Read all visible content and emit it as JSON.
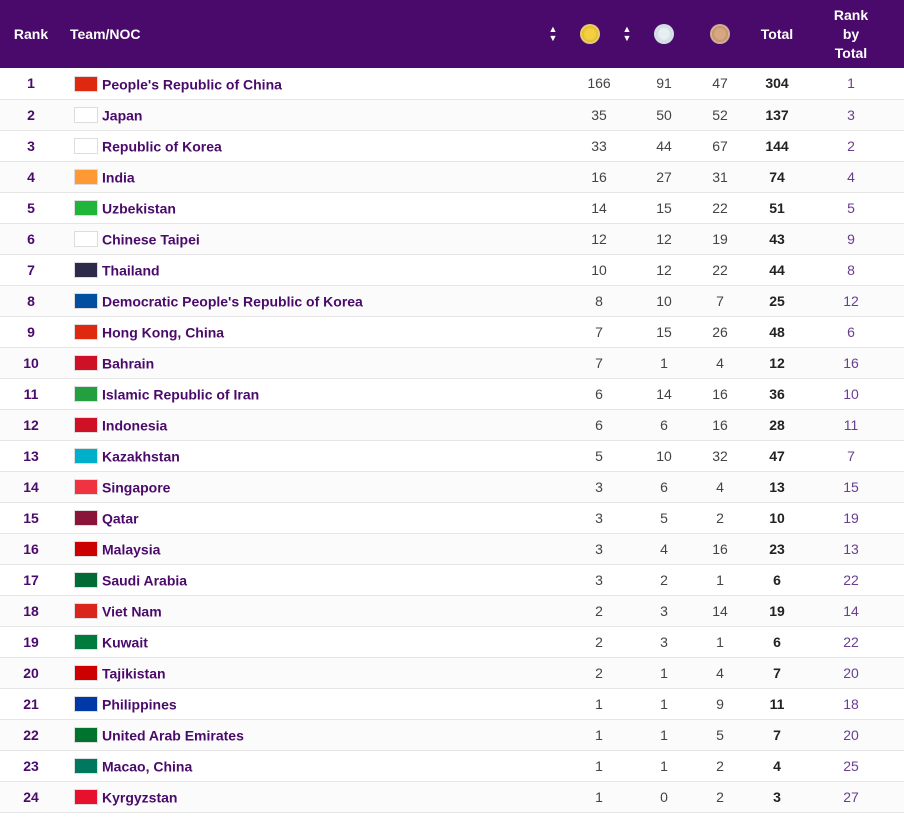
{
  "header": {
    "rank": "Rank",
    "team": "Team/NOC",
    "total": "Total",
    "rank_by_total_1": "Rank",
    "rank_by_total_2": "by",
    "rank_by_total_3": "Total"
  },
  "rows": [
    {
      "rank": "1",
      "team": "People's Republic of China",
      "gold": "166",
      "silver": "91",
      "bronze": "47",
      "total": "304",
      "rbt": "1",
      "flag": "#de2910"
    },
    {
      "rank": "2",
      "team": "Japan",
      "gold": "35",
      "silver": "50",
      "bronze": "52",
      "total": "137",
      "rbt": "3",
      "flag": "#ffffff"
    },
    {
      "rank": "3",
      "team": "Republic of Korea",
      "gold": "33",
      "silver": "44",
      "bronze": "67",
      "total": "144",
      "rbt": "2",
      "flag": "#ffffff"
    },
    {
      "rank": "4",
      "team": "India",
      "gold": "16",
      "silver": "27",
      "bronze": "31",
      "total": "74",
      "rbt": "4",
      "flag": "#ff9933"
    },
    {
      "rank": "5",
      "team": "Uzbekistan",
      "gold": "14",
      "silver": "15",
      "bronze": "22",
      "total": "51",
      "rbt": "5",
      "flag": "#1eb53a"
    },
    {
      "rank": "6",
      "team": "Chinese Taipei",
      "gold": "12",
      "silver": "12",
      "bronze": "19",
      "total": "43",
      "rbt": "9",
      "flag": "#ffffff"
    },
    {
      "rank": "7",
      "team": "Thailand",
      "gold": "10",
      "silver": "12",
      "bronze": "22",
      "total": "44",
      "rbt": "8",
      "flag": "#2d2a4a"
    },
    {
      "rank": "8",
      "team": "Democratic People's Republic of Korea",
      "gold": "8",
      "silver": "10",
      "bronze": "7",
      "total": "25",
      "rbt": "12",
      "flag": "#024fa2"
    },
    {
      "rank": "9",
      "team": "Hong Kong, China",
      "gold": "7",
      "silver": "15",
      "bronze": "26",
      "total": "48",
      "rbt": "6",
      "flag": "#de2910"
    },
    {
      "rank": "10",
      "team": "Bahrain",
      "gold": "7",
      "silver": "1",
      "bronze": "4",
      "total": "12",
      "rbt": "16",
      "flag": "#ce1126"
    },
    {
      "rank": "11",
      "team": "Islamic Republic of Iran",
      "gold": "6",
      "silver": "14",
      "bronze": "16",
      "total": "36",
      "rbt": "10",
      "flag": "#239f40"
    },
    {
      "rank": "12",
      "team": "Indonesia",
      "gold": "6",
      "silver": "6",
      "bronze": "16",
      "total": "28",
      "rbt": "11",
      "flag": "#ce1126"
    },
    {
      "rank": "13",
      "team": "Kazakhstan",
      "gold": "5",
      "silver": "10",
      "bronze": "32",
      "total": "47",
      "rbt": "7",
      "flag": "#00afca"
    },
    {
      "rank": "14",
      "team": "Singapore",
      "gold": "3",
      "silver": "6",
      "bronze": "4",
      "total": "13",
      "rbt": "15",
      "flag": "#ef3340"
    },
    {
      "rank": "15",
      "team": "Qatar",
      "gold": "3",
      "silver": "5",
      "bronze": "2",
      "total": "10",
      "rbt": "19",
      "flag": "#8a1538"
    },
    {
      "rank": "16",
      "team": "Malaysia",
      "gold": "3",
      "silver": "4",
      "bronze": "16",
      "total": "23",
      "rbt": "13",
      "flag": "#cc0001"
    },
    {
      "rank": "17",
      "team": "Saudi Arabia",
      "gold": "3",
      "silver": "2",
      "bronze": "1",
      "total": "6",
      "rbt": "22",
      "flag": "#006c35"
    },
    {
      "rank": "18",
      "team": "Viet Nam",
      "gold": "2",
      "silver": "3",
      "bronze": "14",
      "total": "19",
      "rbt": "14",
      "flag": "#da251d"
    },
    {
      "rank": "19",
      "team": "Kuwait",
      "gold": "2",
      "silver": "3",
      "bronze": "1",
      "total": "6",
      "rbt": "22",
      "flag": "#007a3d"
    },
    {
      "rank": "20",
      "team": "Tajikistan",
      "gold": "2",
      "silver": "1",
      "bronze": "4",
      "total": "7",
      "rbt": "20",
      "flag": "#cc0000"
    },
    {
      "rank": "21",
      "team": "Philippines",
      "gold": "1",
      "silver": "1",
      "bronze": "9",
      "total": "11",
      "rbt": "18",
      "flag": "#0038a8"
    },
    {
      "rank": "22",
      "team": "United Arab Emirates",
      "gold": "1",
      "silver": "1",
      "bronze": "5",
      "total": "7",
      "rbt": "20",
      "flag": "#00732f"
    },
    {
      "rank": "23",
      "team": "Macao, China",
      "gold": "1",
      "silver": "1",
      "bronze": "2",
      "total": "4",
      "rbt": "25",
      "flag": "#00785e"
    },
    {
      "rank": "24",
      "team": "Kyrgyzstan",
      "gold": "1",
      "silver": "0",
      "bronze": "2",
      "total": "3",
      "rbt": "27",
      "flag": "#e8112d"
    }
  ]
}
